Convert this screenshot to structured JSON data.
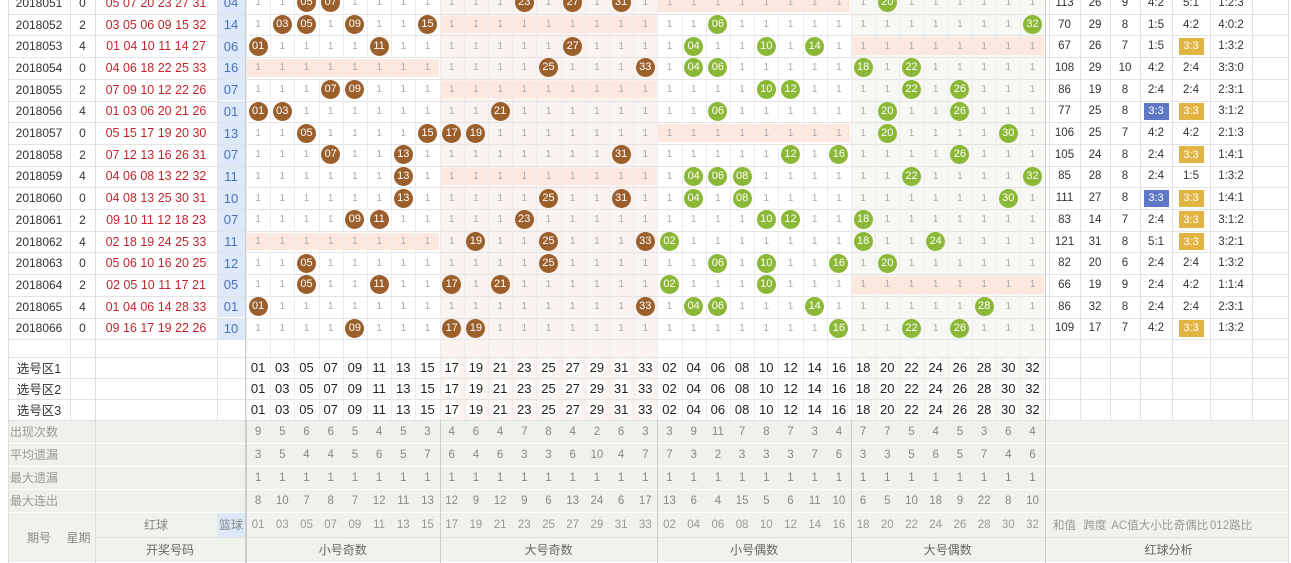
{
  "rows": [
    {
      "period": "2018051",
      "week": "0",
      "reds": "05 07 20 23 27 31",
      "blue": "04",
      "sum": "113",
      "span": "26",
      "ac": "9",
      "size": "4:2",
      "oddeven": "5:1",
      "route": "1:2:3"
    },
    {
      "period": "2018052",
      "week": "2",
      "reds": "03 05 06 09 15 32",
      "blue": "14",
      "sum": "70",
      "span": "29",
      "ac": "8",
      "size": "1:5",
      "oddeven": "4:2",
      "route": "4:0:2"
    },
    {
      "period": "2018053",
      "week": "4",
      "reds": "01 04 10 11 14 27",
      "blue": "06",
      "sum": "67",
      "span": "26",
      "ac": "7",
      "size": "1:5",
      "oddeven": "3:3",
      "route": "1:3:2"
    },
    {
      "period": "2018054",
      "week": "0",
      "reds": "04 06 18 22 25 33",
      "blue": "16",
      "sum": "108",
      "span": "29",
      "ac": "10",
      "size": "4:2",
      "oddeven": "2:4",
      "route": "3:3:0"
    },
    {
      "period": "2018055",
      "week": "2",
      "reds": "07 09 10 12 22 26",
      "blue": "07",
      "sum": "86",
      "span": "19",
      "ac": "8",
      "size": "2:4",
      "oddeven": "2:4",
      "route": "2:3:1"
    },
    {
      "period": "2018056",
      "week": "4",
      "reds": "01 03 06 20 21 26",
      "blue": "01",
      "sum": "77",
      "span": "25",
      "ac": "8",
      "size": "3:3",
      "oddeven": "3:3",
      "route": "3:1:2"
    },
    {
      "period": "2018057",
      "week": "0",
      "reds": "05 15 17 19 20 30",
      "blue": "13",
      "sum": "106",
      "span": "25",
      "ac": "7",
      "size": "4:2",
      "oddeven": "4:2",
      "route": "2:1:3"
    },
    {
      "period": "2018058",
      "week": "2",
      "reds": "07 12 13 16 26 31",
      "blue": "07",
      "sum": "105",
      "span": "24",
      "ac": "8",
      "size": "2:4",
      "oddeven": "3:3",
      "route": "1:4:1"
    },
    {
      "period": "2018059",
      "week": "4",
      "reds": "04 06 08 13 22 32",
      "blue": "11",
      "sum": "85",
      "span": "28",
      "ac": "8",
      "size": "2:4",
      "oddeven": "1:5",
      "route": "1:3:2"
    },
    {
      "period": "2018060",
      "week": "0",
      "reds": "04 08 13 25 30 31",
      "blue": "10",
      "sum": "111",
      "span": "27",
      "ac": "8",
      "size": "3:3",
      "oddeven": "3:3",
      "route": "1:4:1"
    },
    {
      "period": "2018061",
      "week": "2",
      "reds": "09 10 11 12 18 23",
      "blue": "07",
      "sum": "83",
      "span": "14",
      "ac": "7",
      "size": "2:4",
      "oddeven": "3:3",
      "route": "3:1:2"
    },
    {
      "period": "2018062",
      "week": "4",
      "reds": "02 18 19 24 25 33",
      "blue": "11",
      "sum": "121",
      "span": "31",
      "ac": "8",
      "size": "5:1",
      "oddeven": "3:3",
      "route": "3:2:1"
    },
    {
      "period": "2018063",
      "week": "0",
      "reds": "05 06 10 16 20 25",
      "blue": "12",
      "sum": "82",
      "span": "20",
      "ac": "6",
      "size": "2:4",
      "oddeven": "2:4",
      "route": "1:3:2"
    },
    {
      "period": "2018064",
      "week": "2",
      "reds": "02 05 10 11 17 21",
      "blue": "05",
      "sum": "66",
      "span": "19",
      "ac": "9",
      "size": "2:4",
      "oddeven": "4:2",
      "route": "1:1:4"
    },
    {
      "period": "2018065",
      "week": "4",
      "reds": "01 04 06 14 28 33",
      "blue": "01",
      "sum": "86",
      "span": "32",
      "ac": "8",
      "size": "2:4",
      "oddeven": "2:4",
      "route": "2:3:1"
    },
    {
      "period": "2018066",
      "week": "0",
      "reds": "09 16 17 19 22 26",
      "blue": "10",
      "sum": "109",
      "span": "17",
      "ac": "7",
      "size": "4:2",
      "oddeven": "3:3",
      "route": "1:3:2"
    }
  ],
  "balls": [
    "01",
    "03",
    "05",
    "07",
    "09",
    "11",
    "13",
    "15",
    "17",
    "19",
    "21",
    "23",
    "25",
    "27",
    "29",
    "31",
    "33",
    "02",
    "04",
    "06",
    "08",
    "10",
    "12",
    "14",
    "16",
    "18",
    "20",
    "22",
    "24",
    "26",
    "28",
    "30",
    "32"
  ],
  "select_labels": [
    "选号区1",
    "选号区2",
    "选号区3"
  ],
  "stats": [
    {
      "label": "出现次数",
      "values": [
        "9",
        "5",
        "6",
        "6",
        "5",
        "4",
        "5",
        "3",
        "4",
        "6",
        "4",
        "7",
        "8",
        "4",
        "2",
        "6",
        "3",
        "3",
        "9",
        "11",
        "7",
        "8",
        "7",
        "3",
        "4",
        "7",
        "7",
        "5",
        "4",
        "5",
        "3",
        "6",
        "4"
      ]
    },
    {
      "label": "平均遗漏",
      "values": [
        "3",
        "5",
        "4",
        "4",
        "5",
        "6",
        "5",
        "7",
        "6",
        "4",
        "6",
        "3",
        "3",
        "6",
        "10",
        "4",
        "7",
        "7",
        "3",
        "2",
        "3",
        "3",
        "3",
        "7",
        "6",
        "3",
        "3",
        "5",
        "6",
        "5",
        "7",
        "4",
        "6"
      ]
    },
    {
      "label": "最大遗漏",
      "values": [
        "1",
        "1",
        "1",
        "1",
        "1",
        "1",
        "1",
        "1",
        "1",
        "1",
        "1",
        "1",
        "1",
        "1",
        "1",
        "1",
        "1",
        "1",
        "1",
        "1",
        "1",
        "1",
        "1",
        "1",
        "1",
        "1",
        "1",
        "1",
        "1",
        "1",
        "1",
        "1",
        "1"
      ]
    },
    {
      "label": "最大连出",
      "values": [
        "8",
        "10",
        "7",
        "8",
        "7",
        "12",
        "11",
        "13",
        "12",
        "9",
        "12",
        "9",
        "6",
        "13",
        "24",
        "6",
        "17",
        "13",
        "6",
        "4",
        "15",
        "5",
        "6",
        "11",
        "10",
        "6",
        "5",
        "10",
        "18",
        "9",
        "22",
        "8",
        "10"
      ]
    }
  ],
  "footer": {
    "period_label": "期号",
    "week_label": "星期",
    "red_label": "红球",
    "blue_label": "篮球",
    "open_label": "开奖号码",
    "zone1": "小号奇数",
    "zone2": "大号奇数",
    "zone3": "小号偶数",
    "zone4": "大号偶数",
    "analysis_label": "红球分析",
    "analysis_cols": [
      "和值",
      "跨度",
      "AC值",
      "大小比",
      "奇偶比",
      "012路比"
    ]
  },
  "colors": {
    "odd_ball": "#9b5f2c",
    "even_ball": "#8cb838",
    "blue_cell": "#dde8f8",
    "blue_text": "#4a72b8",
    "miss_band": "#fde8e0",
    "size_hl": "#5f78c6",
    "oe_hl": "#e2b441",
    "red_text": "#c0272d"
  }
}
